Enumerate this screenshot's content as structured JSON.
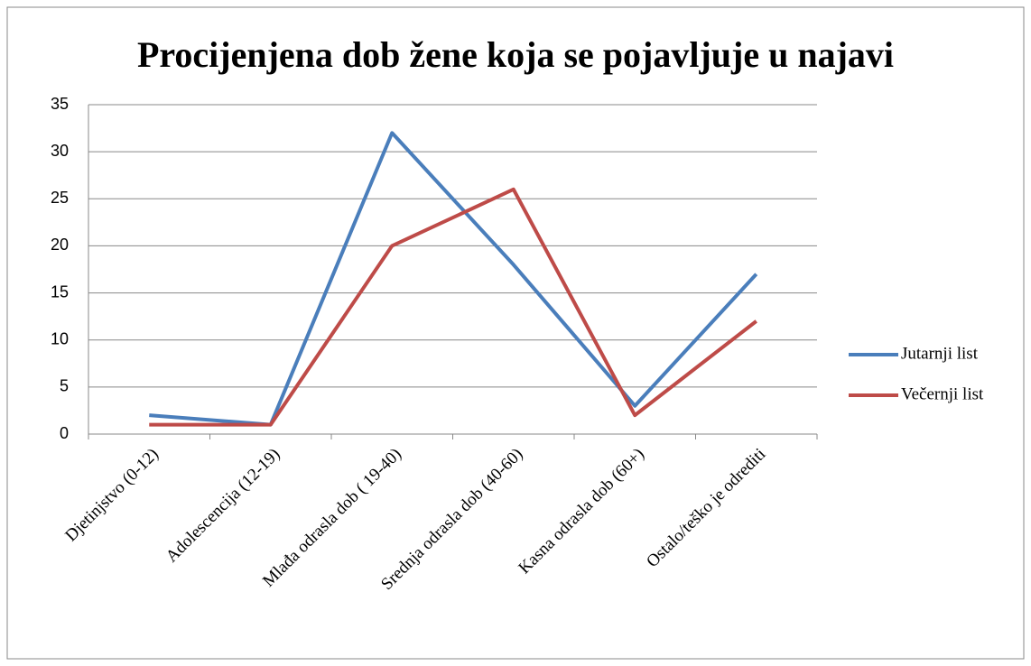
{
  "chart_data": {
    "type": "line",
    "title": "Procijenjena dob žene koja se pojavljuje u najavi",
    "categories": [
      "Djetinjstvo (0-12)",
      "Adolescencija (12-19)",
      "Mlađa odrasla dob ( 19-40)",
      "Srednja odrasla dob (40-60)",
      "Kasna odrasla dob (60+)",
      "Ostalo/teško je odrediti"
    ],
    "series": [
      {
        "name": "Jutarnji list",
        "color": "#4a7ebb",
        "values": [
          2,
          1,
          32,
          18,
          3,
          17
        ]
      },
      {
        "name": "Večernji list",
        "color": "#be4b48",
        "values": [
          1,
          1,
          20,
          26,
          2,
          12
        ]
      }
    ],
    "ylim": [
      0,
      35
    ],
    "yticks": [
      0,
      5,
      10,
      15,
      20,
      25,
      30,
      35
    ],
    "grid": true,
    "legend": "right"
  }
}
